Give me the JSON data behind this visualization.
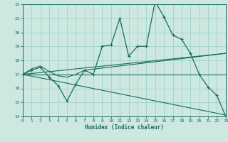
{
  "xlabel": "Humidex (Indice chaleur)",
  "bg_color": "#cce8e0",
  "grid_color": "#99cfc3",
  "line_color": "#1a6b5e",
  "xmin": 0,
  "xmax": 23,
  "ymin": 14,
  "ymax": 22,
  "xticks": [
    0,
    1,
    2,
    3,
    4,
    5,
    6,
    7,
    8,
    9,
    10,
    11,
    12,
    13,
    14,
    15,
    16,
    17,
    18,
    19,
    20,
    21,
    22,
    23
  ],
  "yticks": [
    14,
    15,
    16,
    17,
    18,
    19,
    20,
    21,
    22
  ],
  "main_x": [
    0,
    1,
    2,
    3,
    4,
    5,
    6,
    7,
    8,
    9,
    10,
    11,
    12,
    13,
    14,
    15,
    16,
    17,
    18,
    19,
    20,
    21,
    22,
    23
  ],
  "main_y": [
    17.0,
    17.3,
    17.5,
    16.8,
    16.2,
    15.1,
    16.3,
    17.3,
    17.0,
    19.0,
    19.1,
    21.0,
    18.3,
    19.0,
    19.0,
    22.2,
    21.1,
    19.8,
    19.5,
    18.5,
    17.0,
    16.1,
    15.5,
    14.0
  ],
  "trend1_x": [
    0,
    23
  ],
  "trend1_y": [
    17.0,
    17.0
  ],
  "trend2_x": [
    0,
    23
  ],
  "trend2_y": [
    17.0,
    18.5
  ],
  "trend3_x": [
    0,
    23
  ],
  "trend3_y": [
    17.0,
    14.1
  ],
  "smooth_x": [
    0,
    1,
    2,
    3,
    4,
    5,
    6,
    7,
    23
  ],
  "smooth_y": [
    17.0,
    17.4,
    17.6,
    17.2,
    16.9,
    16.8,
    17.0,
    17.3,
    18.5
  ]
}
